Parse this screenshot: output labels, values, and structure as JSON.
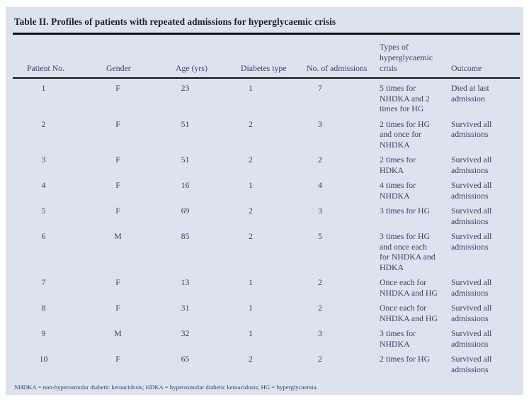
{
  "colors": {
    "panel_bg": "#dce3ee",
    "text": "#39406a",
    "title": "#1a1e30",
    "rule": "#111117"
  },
  "table": {
    "title": "Table II. Profiles of patients with repeated admissions for hyperglycaemic crisis",
    "columns": [
      [
        "Patient No."
      ],
      [
        "Gender"
      ],
      [
        "Age (yrs)"
      ],
      [
        "Diabetes type"
      ],
      [
        "No. of admissions"
      ],
      [
        "Types of",
        "hyperglycaemic",
        "crisis"
      ],
      [
        "Outcome"
      ]
    ],
    "rows": [
      [
        [
          "1"
        ],
        [
          "F"
        ],
        [
          "23"
        ],
        [
          "1"
        ],
        [
          "7"
        ],
        [
          "5 times for",
          "NHDKA and 2",
          "times for HG"
        ],
        [
          "Died at last",
          "admission"
        ]
      ],
      [
        [
          "2"
        ],
        [
          "F"
        ],
        [
          "51"
        ],
        [
          "2"
        ],
        [
          "3"
        ],
        [
          "2 times for HG",
          "and once for",
          "NHDKA"
        ],
        [
          "Survived all",
          "admissions"
        ]
      ],
      [
        [
          "3"
        ],
        [
          "F"
        ],
        [
          "51"
        ],
        [
          "2"
        ],
        [
          "2"
        ],
        [
          "2 times for HDKA"
        ],
        [
          "Survived all",
          "admissions"
        ]
      ],
      [
        [
          "4"
        ],
        [
          "F"
        ],
        [
          "16"
        ],
        [
          "1"
        ],
        [
          "4"
        ],
        [
          "4 times for",
          "NHDKA"
        ],
        [
          "Survived all",
          "admissions"
        ]
      ],
      [
        [
          "5"
        ],
        [
          "F"
        ],
        [
          "69"
        ],
        [
          "2"
        ],
        [
          "3"
        ],
        [
          "3 times for HG"
        ],
        [
          "Survived all",
          "admissions"
        ]
      ],
      [
        [
          "6"
        ],
        [
          "M"
        ],
        [
          "85"
        ],
        [
          "2"
        ],
        [
          "5"
        ],
        [
          "3 times for HG",
          "and once each",
          "for NHDKA and",
          "HDKA"
        ],
        [
          "Survived all",
          "admissions"
        ]
      ],
      [
        [
          "7"
        ],
        [
          "F"
        ],
        [
          "13"
        ],
        [
          "1"
        ],
        [
          "2"
        ],
        [
          "Once each for",
          "NHDKA and HG"
        ],
        [
          "Survived all",
          "admissions"
        ]
      ],
      [
        [
          "8"
        ],
        [
          "F"
        ],
        [
          "31"
        ],
        [
          "1"
        ],
        [
          "2"
        ],
        [
          "Once each for",
          "NHDKA and HG"
        ],
        [
          "Survived all",
          "admissions"
        ]
      ],
      [
        [
          "9"
        ],
        [
          "M"
        ],
        [
          "32"
        ],
        [
          "1"
        ],
        [
          "3"
        ],
        [
          "3 times for",
          "NHDKA"
        ],
        [
          "Survived all",
          "admissions"
        ]
      ],
      [
        [
          "10"
        ],
        [
          "F"
        ],
        [
          "65"
        ],
        [
          "2"
        ],
        [
          "2"
        ],
        [
          "2 times for HG"
        ],
        [
          "Survived all",
          "admissions"
        ]
      ]
    ],
    "footnote": "NHDKA = non-hyperosmolar diabetic ketoacidosis; HDKA = hyperosmolar diabetic ketoacidosis; HG = hyperglycaemia."
  }
}
